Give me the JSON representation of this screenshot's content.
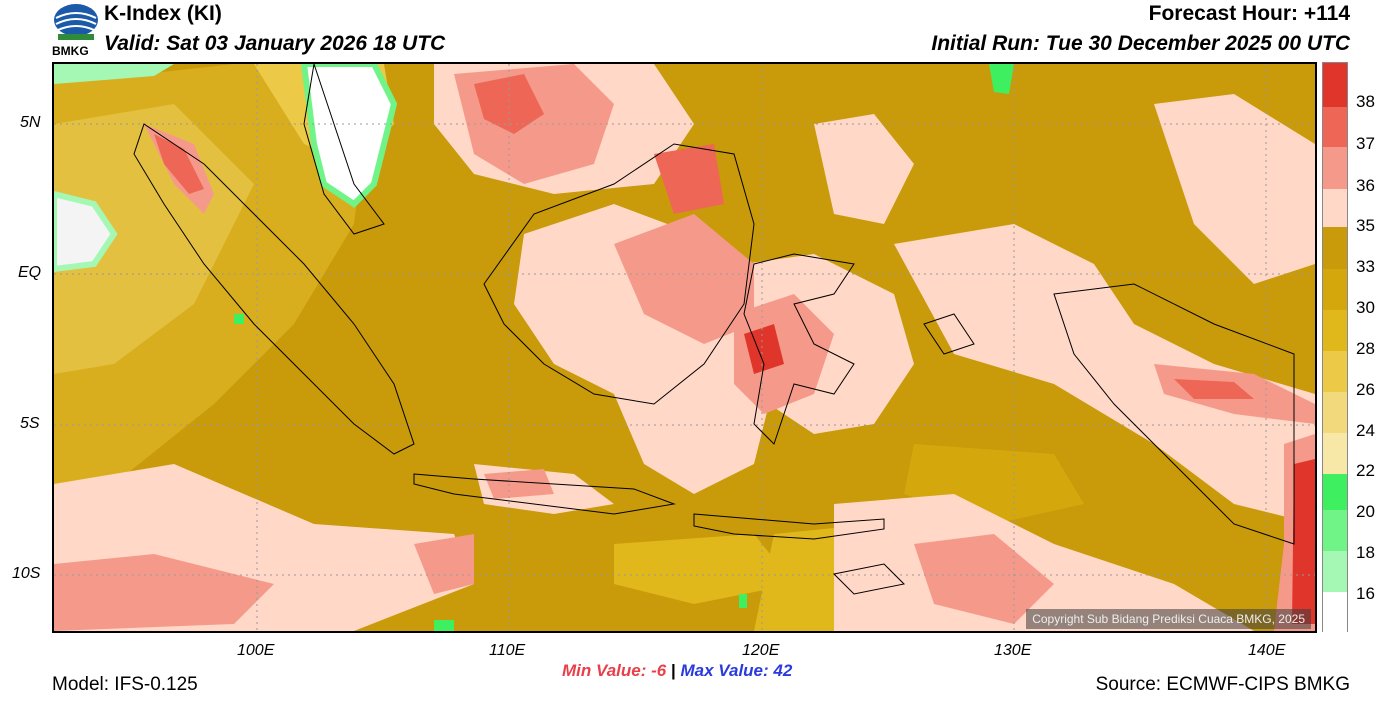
{
  "header": {
    "logo_text": "BMKG",
    "title": "K-Index (KI)",
    "valid": "Valid: Sat 03 January 2026 18 UTC",
    "forecast_hour": "Forecast Hour: +114",
    "initial_run": "Initial Run: Tue 30 December 2025 00 UTC"
  },
  "axes": {
    "lat_labels": [
      "5N",
      "EQ",
      "5S",
      "10S"
    ],
    "lon_labels": [
      "100E",
      "110E",
      "120E",
      "130E",
      "140E"
    ]
  },
  "colorbar": {
    "labels": [
      "38",
      "37",
      "36",
      "35",
      "33",
      "30",
      "28",
      "26",
      "24",
      "22",
      "20",
      "18",
      "16"
    ],
    "colors": [
      "#e0352b",
      "#ee6655",
      "#f59a8a",
      "#ffd8c8",
      "#c99a0a",
      "#d4a80c",
      "#e0b81c",
      "#ecca48",
      "#f2da7c",
      "#f8e8a8",
      "#3ef060",
      "#70f488",
      "#a4f8b4",
      "#ffffff"
    ]
  },
  "copyright": "Copyright Sub Bidang Prediksi Cuaca BMKG, 2025",
  "footer": {
    "model": "Model: IFS-0.125",
    "min_label": "Min Value:",
    "min_value": "-6",
    "separator": "|",
    "max_label": "Max Value:",
    "max_value": "42",
    "source": "Source: ECMWF-CIPS BMKG"
  }
}
